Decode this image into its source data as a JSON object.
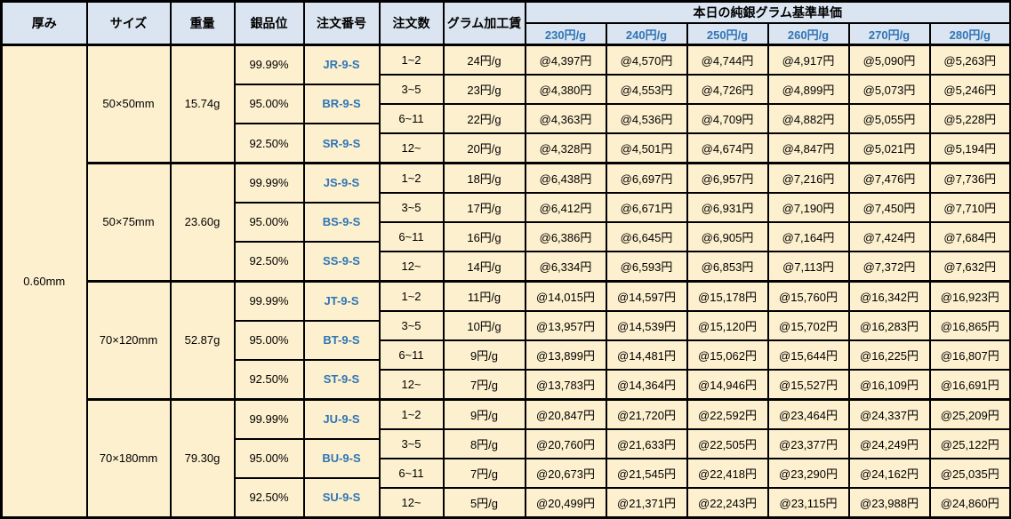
{
  "header": {
    "columns": [
      "厚み",
      "サイズ",
      "重量",
      "銀品位",
      "注文番号",
      "注文数",
      "グラム加工賃"
    ],
    "price_group_title": "本日の純銀グラム基準単価",
    "price_columns": [
      "230円/g",
      "240円/g",
      "250円/g",
      "260円/g",
      "270円/g",
      "280円/g"
    ]
  },
  "thickness": "0.60mm",
  "groups": [
    {
      "size": "50×50mm",
      "weight": "15.74g",
      "purities": [
        {
          "purity": "99.99%",
          "order_no": "JR-9-S"
        },
        {
          "purity": "95.00%",
          "order_no": "BR-9-S"
        },
        {
          "purity": "92.50%",
          "order_no": "SR-9-S"
        }
      ],
      "rows": [
        {
          "qty": "1~2",
          "fee": "24円/g",
          "prices": [
            "@4,397円",
            "@4,570円",
            "@4,744円",
            "@4,917円",
            "@5,090円",
            "@5,263円"
          ]
        },
        {
          "qty": "3~5",
          "fee": "23円/g",
          "prices": [
            "@4,380円",
            "@4,553円",
            "@4,726円",
            "@4,899円",
            "@5,073円",
            "@5,246円"
          ]
        },
        {
          "qty": "6~11",
          "fee": "22円/g",
          "prices": [
            "@4,363円",
            "@4,536円",
            "@4,709円",
            "@4,882円",
            "@5,055円",
            "@5,228円"
          ]
        },
        {
          "qty": "12~",
          "fee": "20円/g",
          "prices": [
            "@4,328円",
            "@4,501円",
            "@4,674円",
            "@4,847円",
            "@5,021円",
            "@5,194円"
          ]
        }
      ]
    },
    {
      "size": "50×75mm",
      "weight": "23.60g",
      "purities": [
        {
          "purity": "99.99%",
          "order_no": "JS-9-S"
        },
        {
          "purity": "95.00%",
          "order_no": "BS-9-S"
        },
        {
          "purity": "92.50%",
          "order_no": "SS-9-S"
        }
      ],
      "rows": [
        {
          "qty": "1~2",
          "fee": "18円/g",
          "prices": [
            "@6,438円",
            "@6,697円",
            "@6,957円",
            "@7,216円",
            "@7,476円",
            "@7,736円"
          ]
        },
        {
          "qty": "3~5",
          "fee": "17円/g",
          "prices": [
            "@6,412円",
            "@6,671円",
            "@6,931円",
            "@7,190円",
            "@7,450円",
            "@7,710円"
          ]
        },
        {
          "qty": "6~11",
          "fee": "16円/g",
          "prices": [
            "@6,386円",
            "@6,645円",
            "@6,905円",
            "@7,164円",
            "@7,424円",
            "@7,684円"
          ]
        },
        {
          "qty": "12~",
          "fee": "14円/g",
          "prices": [
            "@6,334円",
            "@6,593円",
            "@6,853円",
            "@7,113円",
            "@7,372円",
            "@7,632円"
          ]
        }
      ]
    },
    {
      "size": "70×120mm",
      "weight": "52.87g",
      "purities": [
        {
          "purity": "99.99%",
          "order_no": "JT-9-S"
        },
        {
          "purity": "95.00%",
          "order_no": "BT-9-S"
        },
        {
          "purity": "92.50%",
          "order_no": "ST-9-S"
        }
      ],
      "rows": [
        {
          "qty": "1~2",
          "fee": "11円/g",
          "prices": [
            "@14,015円",
            "@14,597円",
            "@15,178円",
            "@15,760円",
            "@16,342円",
            "@16,923円"
          ]
        },
        {
          "qty": "3~5",
          "fee": "10円/g",
          "prices": [
            "@13,957円",
            "@14,539円",
            "@15,120円",
            "@15,702円",
            "@16,283円",
            "@16,865円"
          ]
        },
        {
          "qty": "6~11",
          "fee": "9円/g",
          "prices": [
            "@13,899円",
            "@14,481円",
            "@15,062円",
            "@15,644円",
            "@16,225円",
            "@16,807円"
          ]
        },
        {
          "qty": "12~",
          "fee": "7円/g",
          "prices": [
            "@13,783円",
            "@14,364円",
            "@14,946円",
            "@15,527円",
            "@16,109円",
            "@16,691円"
          ]
        }
      ]
    },
    {
      "size": "70×180mm",
      "weight": "79.30g",
      "purities": [
        {
          "purity": "99.99%",
          "order_no": "JU-9-S"
        },
        {
          "purity": "95.00%",
          "order_no": "BU-9-S"
        },
        {
          "purity": "92.50%",
          "order_no": "SU-9-S"
        }
      ],
      "rows": [
        {
          "qty": "1~2",
          "fee": "9円/g",
          "prices": [
            "@20,847円",
            "@21,720円",
            "@22,592円",
            "@23,464円",
            "@24,337円",
            "@25,209円"
          ]
        },
        {
          "qty": "3~5",
          "fee": "8円/g",
          "prices": [
            "@20,760円",
            "@21,633円",
            "@22,505円",
            "@23,377円",
            "@24,249円",
            "@25,122円"
          ]
        },
        {
          "qty": "6~11",
          "fee": "7円/g",
          "prices": [
            "@20,673円",
            "@21,545円",
            "@22,418円",
            "@23,290円",
            "@24,162円",
            "@25,035円"
          ]
        },
        {
          "qty": "12~",
          "fee": "5円/g",
          "prices": [
            "@20,499円",
            "@21,371円",
            "@22,243円",
            "@23,115円",
            "@23,988円",
            "@24,860円"
          ]
        }
      ]
    }
  ],
  "colors": {
    "header_bg": "#dbe5f1",
    "body_bg": "#fdf0ce",
    "accent_blue": "#2e75b6",
    "border": "#000000"
  }
}
